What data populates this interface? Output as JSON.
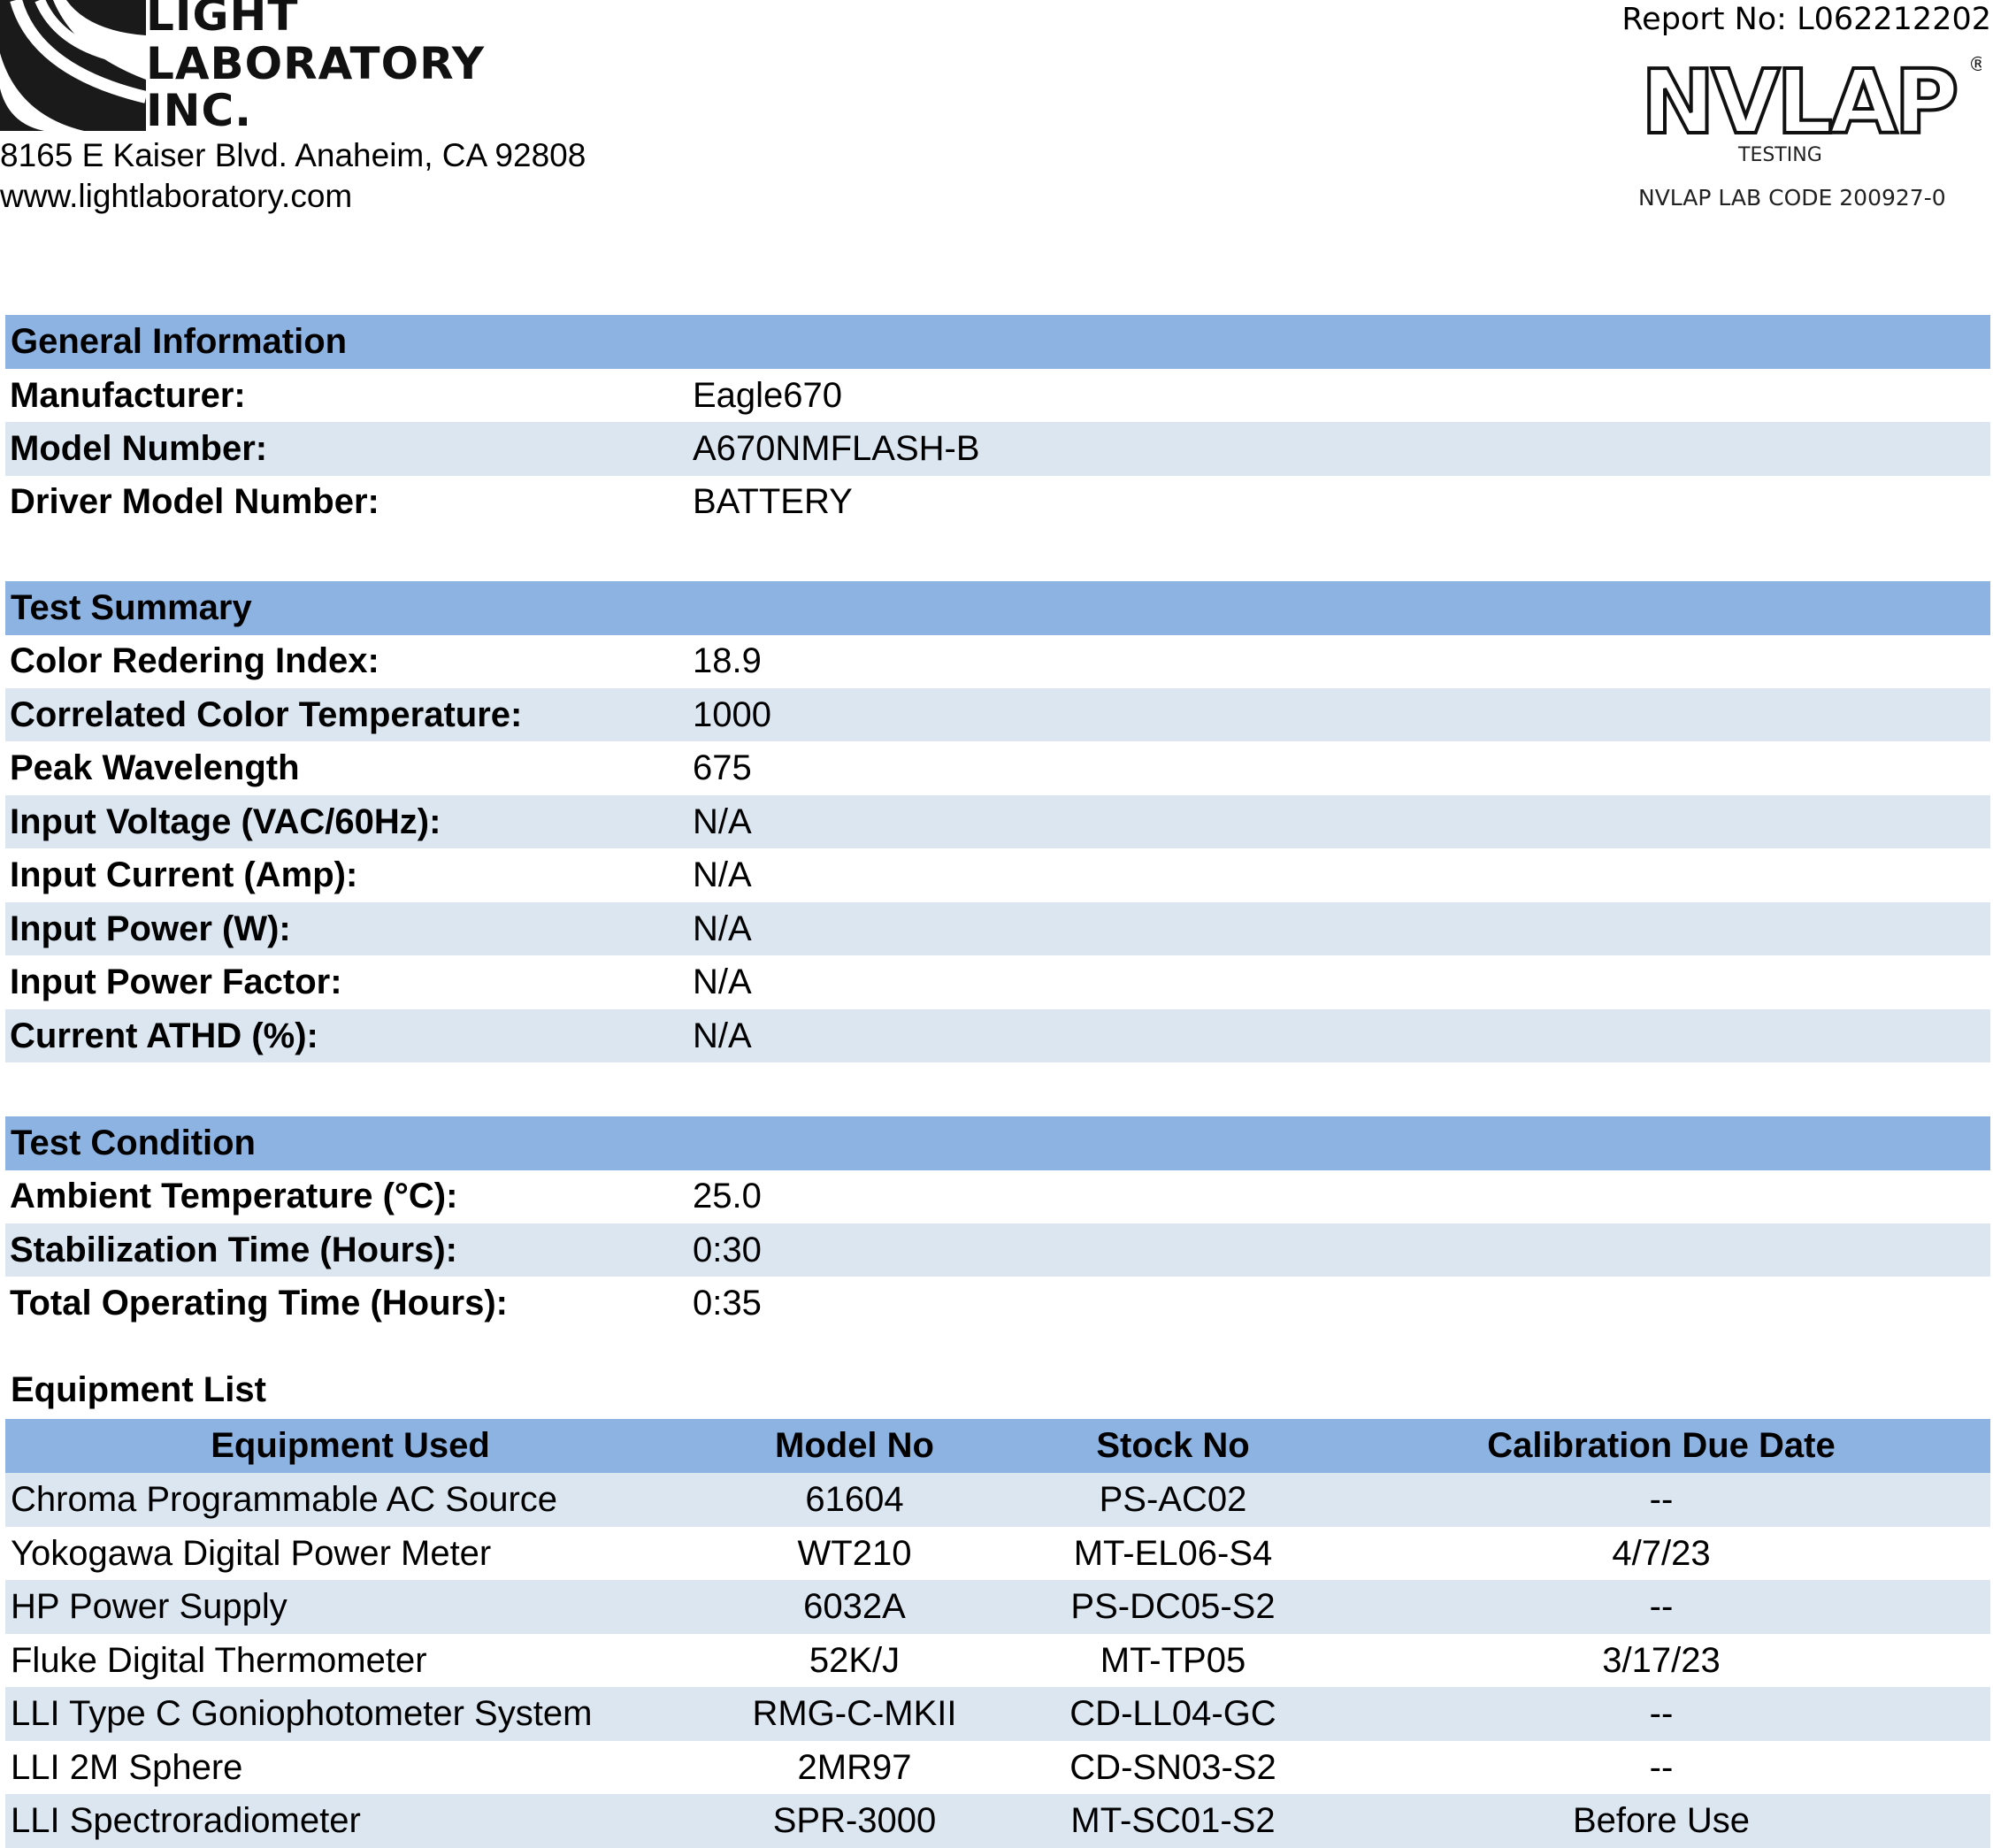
{
  "header": {
    "logo_lines": [
      "LIGHT",
      "LABORATORY",
      "INC."
    ],
    "address": "8165 E Kaiser Blvd. Anaheim, CA 92808",
    "website": "www.lightlaboratory.com",
    "report_no": "Report No: L062212202",
    "nvlap_logo_text": "NVLAP",
    "nvlap_testing": "TESTING",
    "nvlap_lab_code": "NVLAP LAB CODE 200927-0"
  },
  "general_information": {
    "title": "General Information",
    "rows": [
      {
        "label": "Manufacturer:",
        "value": "Eagle670"
      },
      {
        "label": "Model Number:",
        "value": "A670NMFLASH-B"
      },
      {
        "label": "Driver Model Number:",
        "value": "BATTERY"
      }
    ]
  },
  "test_summary": {
    "title": "Test Summary",
    "rows": [
      {
        "label": "Color Redering Index:",
        "value": "18.9"
      },
      {
        "label": "Correlated Color Temperature:",
        "value": "1000"
      },
      {
        "label": "Peak Wavelength",
        "value": "675"
      },
      {
        "label": "Input Voltage (VAC/60Hz):",
        "value": "N/A"
      },
      {
        "label": "Input Current (Amp):",
        "value": "N/A"
      },
      {
        "label": "Input Power (W):",
        "value": "N/A"
      },
      {
        "label": "Input Power Factor:",
        "value": "N/A"
      },
      {
        "label": "Current ATHD (%):",
        "value": "N/A"
      }
    ]
  },
  "test_condition": {
    "title": "Test Condition",
    "rows": [
      {
        "label": "Ambient Temperature (°C):",
        "value": "25.0"
      },
      {
        "label": "Stabilization Time (Hours):",
        "value": "0:30"
      },
      {
        "label": "Total Operating Time (Hours):",
        "value": "0:35"
      }
    ]
  },
  "equipment_list": {
    "title": "Equipment List",
    "columns": [
      "Equipment Used",
      "Model No",
      "Stock No",
      "Calibration Due Date"
    ],
    "rows": [
      [
        "Chroma Programmable AC Source",
        "61604",
        "PS-AC02",
        "--"
      ],
      [
        "Yokogawa Digital Power Meter",
        "WT210",
        "MT-EL06-S4",
        "4/7/23"
      ],
      [
        "HP Power Supply",
        "6032A",
        "PS-DC05-S2",
        "--"
      ],
      [
        "Fluke Digital Thermometer",
        "52K/J",
        "MT-TP05",
        "3/17/23"
      ],
      [
        "LLI Type C Goniophotometer System",
        "RMG-C-MKII",
        "CD-LL04-GC",
        "--"
      ],
      [
        "LLI 2M Sphere",
        "2MR97",
        "CD-SN03-S2",
        "--"
      ],
      [
        "LLI Spectroradiometer",
        "SPR-3000",
        "MT-SC01-S2",
        "Before Use"
      ]
    ]
  },
  "colors": {
    "header_bar": "#8DB3E2",
    "alt_row": "#DCE6F1"
  }
}
